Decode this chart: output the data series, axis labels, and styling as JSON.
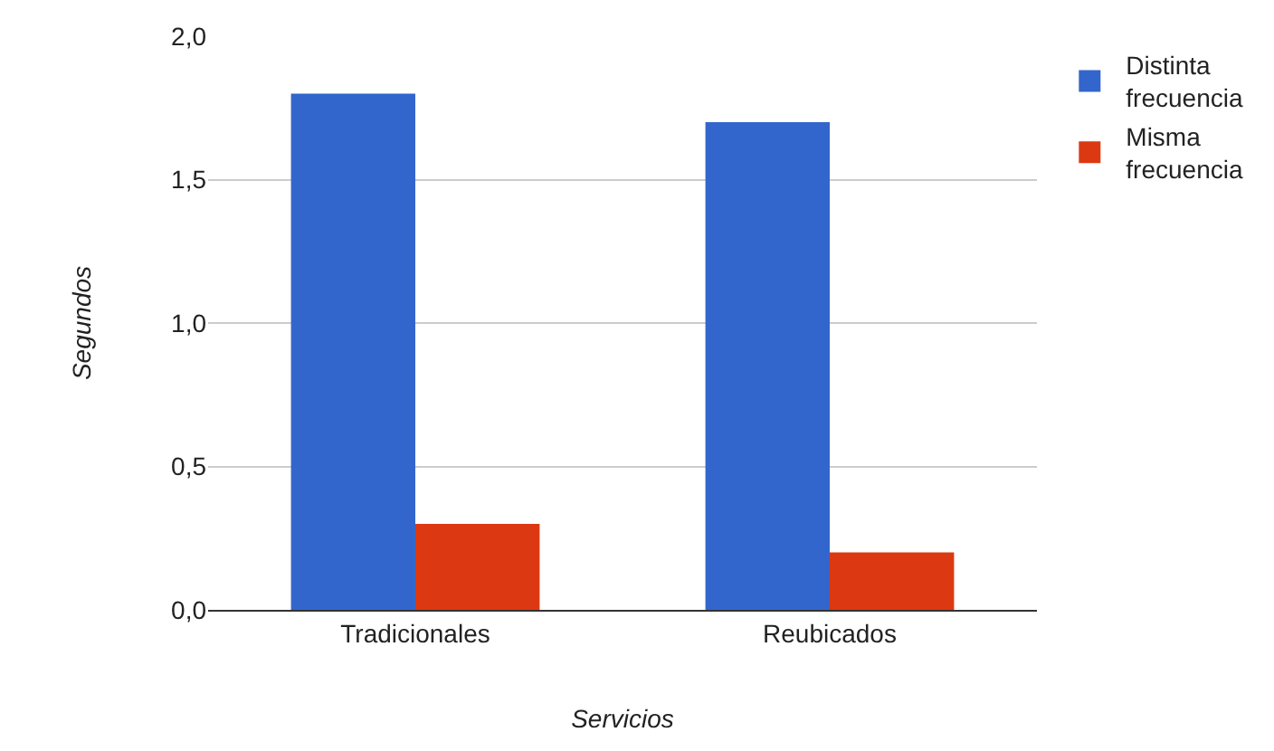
{
  "chart_data": {
    "type": "bar",
    "xlabel": "Servicios",
    "ylabel": "Segundos",
    "categories": [
      "Tradicionales",
      "Reubicados"
    ],
    "series": [
      {
        "name": "Distinta frecuencia",
        "color": "#3366cc",
        "values": [
          1.8,
          1.7
        ]
      },
      {
        "name": "Misma frecuencia",
        "color": "#dc3912",
        "values": [
          0.3,
          0.2
        ]
      }
    ],
    "ylim": [
      0,
      2
    ],
    "yticks": [
      {
        "value": 0,
        "label": "0,0"
      },
      {
        "value": 0.5,
        "label": "0,5"
      },
      {
        "value": 1,
        "label": "1,0"
      },
      {
        "value": 1.5,
        "label": "1,5"
      },
      {
        "value": 2,
        "label": "2,0"
      }
    ],
    "grid": "y",
    "legend": "top right"
  }
}
